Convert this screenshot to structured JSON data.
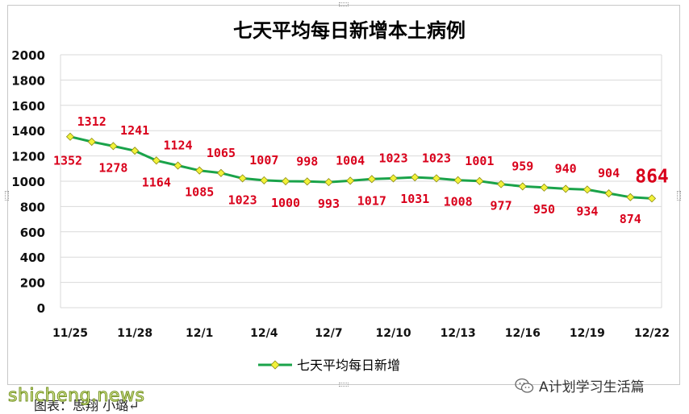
{
  "chart_data": {
    "type": "line",
    "title": "七天平均每日新增本土病例",
    "legend": {
      "label": "七天平均每日新增",
      "position": "bottom"
    },
    "x": [
      "11/25",
      "11/26",
      "11/27",
      "11/28",
      "11/29",
      "11/30",
      "12/1",
      "12/2",
      "12/3",
      "12/4",
      "12/5",
      "12/6",
      "12/7",
      "12/8",
      "12/9",
      "12/10",
      "12/11",
      "12/12",
      "12/13",
      "12/14",
      "12/15",
      "12/16",
      "12/17",
      "12/18",
      "12/19",
      "12/20",
      "12/21",
      "12/22"
    ],
    "x_tick_labels": [
      "11/25",
      "11/28",
      "12/1",
      "12/4",
      "12/7",
      "12/10",
      "12/13",
      "12/16",
      "12/19",
      "12/22"
    ],
    "values": [
      1352,
      1312,
      1278,
      1241,
      1164,
      1124,
      1085,
      1065,
      1023,
      1007,
      1000,
      998,
      993,
      1004,
      1017,
      1023,
      1031,
      1023,
      1008,
      1001,
      977,
      959,
      950,
      940,
      934,
      904,
      874,
      864
    ],
    "data_labels": [
      "1352",
      "1312",
      "1278",
      "1241",
      "1164",
      "1124",
      "1085",
      "1065",
      "1023",
      "1007",
      "1000",
      "998",
      "993",
      "1004",
      "1017",
      "1023",
      "1031",
      "1023",
      "1008",
      "1001",
      "977",
      "959",
      "950",
      "940",
      "934",
      "904",
      "874",
      "864"
    ],
    "y_ticks": [
      "0",
      "200",
      "400",
      "600",
      "800",
      "1000",
      "1200",
      "1400",
      "1600",
      "1800",
      "2000"
    ],
    "ylim": [
      0,
      2000
    ],
    "grid": true,
    "colors": {
      "line": "#1aa34a",
      "marker": "#f2f23a",
      "marker_edge": "#8a8a10",
      "label": "#d9001b",
      "title": "#000000",
      "grid": "#d9d9d9"
    }
  },
  "footer": {
    "caption": "图表：思翔 小璐↵",
    "watermark_left": "shicheng.news",
    "watermark_right": "A计划学习生活篇"
  }
}
